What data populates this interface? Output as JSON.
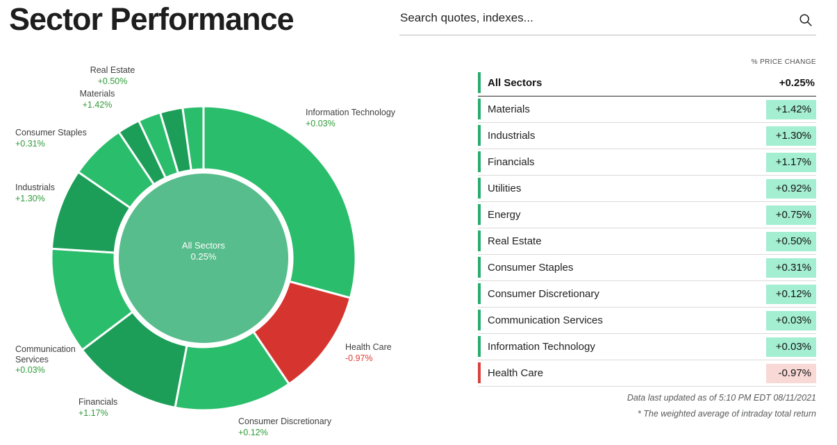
{
  "page": {
    "title": "Sector Performance"
  },
  "search": {
    "placeholder": "Search quotes, indexes...",
    "icon": "search-icon"
  },
  "colors": {
    "segment_bright_green": "#2abd6b",
    "segment_dark_green": "#1d9e58",
    "segment_red": "#d6352f",
    "center_circle": "#58bd8c",
    "accent_positive": "#27ac6d",
    "accent_negative": "#d8423c",
    "badge_positive": "#a4eed2",
    "badge_negative": "#f8d9d6",
    "label_value_positive": "#2f9b38",
    "label_value_negative": "#e23b35"
  },
  "chart_data": {
    "type": "donut",
    "title": "Sector Performance",
    "center_label": "All Sectors",
    "center_value_label": "0.25%",
    "center_value_pct": 0.25,
    "center_color": "#58bd8c",
    "note": "segment angular size = index weight (estimated from pixels), label = intraday % price change",
    "segments": [
      {
        "name": "Information Technology",
        "change_label": "+0.03%",
        "change_pct": 0.03,
        "weight_pct": 29.2,
        "color": "#2abd6b"
      },
      {
        "name": "Health Care",
        "change_label": "-0.97%",
        "change_pct": -0.97,
        "weight_pct": 11.3,
        "color": "#d6352f"
      },
      {
        "name": "Consumer Discretionary",
        "change_label": "+0.12%",
        "change_pct": 0.12,
        "weight_pct": 12.5,
        "color": "#2abd6b"
      },
      {
        "name": "Financials",
        "change_label": "+1.17%",
        "change_pct": 1.17,
        "weight_pct": 11.7,
        "color": "#1d9e58"
      },
      {
        "name": "Communication Services",
        "change_label": "+0.03%",
        "change_pct": 0.03,
        "weight_pct": 11.3,
        "color": "#2abd6b"
      },
      {
        "name": "Industrials",
        "change_label": "+1.30%",
        "change_pct": 1.3,
        "weight_pct": 8.6,
        "color": "#1d9e58"
      },
      {
        "name": "Consumer Staples",
        "change_label": "+0.31%",
        "change_pct": 0.31,
        "weight_pct": 6.0,
        "color": "#2abd6b"
      },
      {
        "name": "Materials",
        "change_label": "+1.42%",
        "change_pct": 1.42,
        "weight_pct": 2.4,
        "color": "#1d9e58"
      },
      {
        "name": "Real Estate",
        "change_label": "+0.50%",
        "change_pct": 0.5,
        "weight_pct": 2.4,
        "color": "#2abd6b"
      },
      {
        "name": "Utilities",
        "change_label": "+0.92%",
        "change_pct": 0.92,
        "weight_pct": 2.4,
        "color": "#1d9e58"
      },
      {
        "name": "Energy",
        "change_label": "+0.75%",
        "change_pct": 0.75,
        "weight_pct": 2.2,
        "color": "#2abd6b"
      }
    ]
  },
  "table": {
    "header": "% PRICE CHANGE",
    "summary_row": {
      "label": "All Sectors",
      "value": "+0.25%"
    },
    "rows": [
      {
        "label": "Materials",
        "value": "+1.42%",
        "negative": false
      },
      {
        "label": "Industrials",
        "value": "+1.30%",
        "negative": false
      },
      {
        "label": "Financials",
        "value": "+1.17%",
        "negative": false
      },
      {
        "label": "Utilities",
        "value": "+0.92%",
        "negative": false
      },
      {
        "label": "Energy",
        "value": "+0.75%",
        "negative": false
      },
      {
        "label": "Real Estate",
        "value": "+0.50%",
        "negative": false
      },
      {
        "label": "Consumer Staples",
        "value": "+0.31%",
        "negative": false
      },
      {
        "label": "Consumer Discretionary",
        "value": "+0.12%",
        "negative": false
      },
      {
        "label": "Communication Services",
        "value": "+0.03%",
        "negative": false
      },
      {
        "label": "Information Technology",
        "value": "+0.03%",
        "negative": false
      },
      {
        "label": "Health Care",
        "value": "-0.97%",
        "negative": true
      }
    ],
    "footnotes": [
      "Data last updated as of 5:10 PM EDT 08/11/2021",
      "* The weighted average of intraday total return"
    ]
  }
}
